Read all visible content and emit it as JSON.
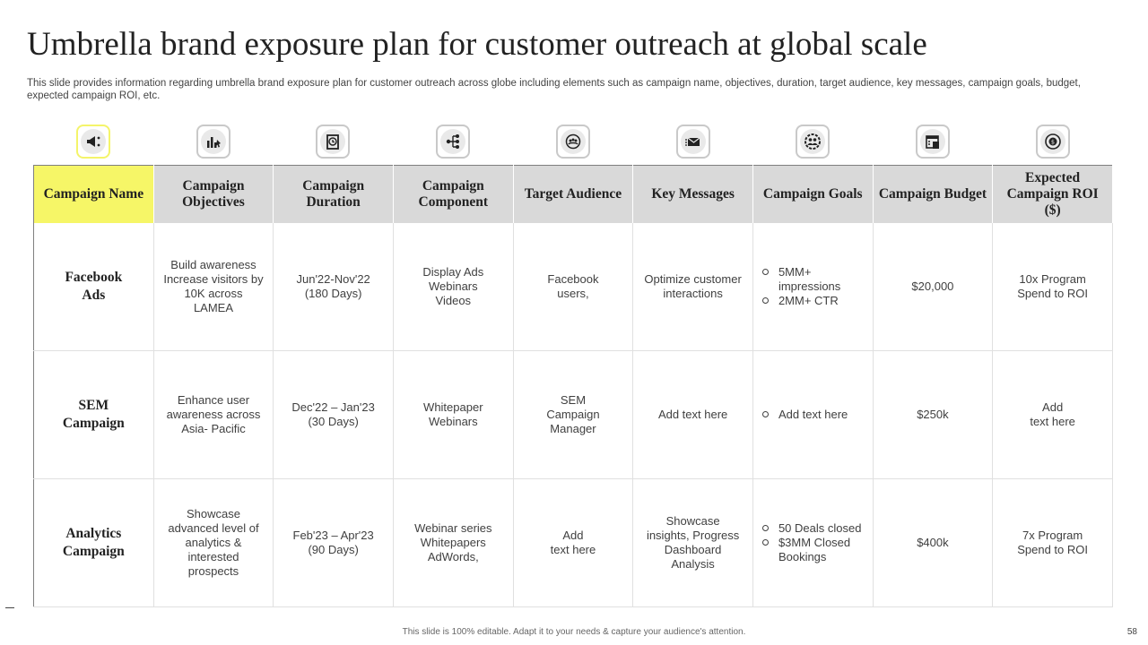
{
  "title": "Umbrella brand exposure plan for customer outreach at global scale",
  "subtitle": "This slide provides information regarding umbrella brand exposure plan for customer outreach across globe including elements such as campaign name, objectives, duration, target audience, key messages, campaign goals, budget, expected campaign ROI, etc.",
  "icons": [
    "megaphone-icon",
    "chart-pointer-icon",
    "clock-board-icon",
    "network-icon",
    "target-audience-icon",
    "email-icon",
    "people-gear-icon",
    "calendar-budget-icon",
    "coin-return-icon"
  ],
  "colors": {
    "highlight": "#f6f667",
    "header_gray": "#d9d9d9"
  },
  "headers": [
    "Campaign Name",
    "Campaign Objectives",
    "Campaign Duration",
    "Campaign Component",
    "Target Audience",
    "Key Messages",
    "Campaign Goals",
    "Campaign Budget",
    "Expected Campaign ROI ($)"
  ],
  "rows": [
    {
      "name": [
        "Facebook",
        "Ads"
      ],
      "objectives": [
        "Build awareness",
        "Increase visitors by",
        "10K across",
        "LAMEA"
      ],
      "duration": [
        "Jun'22-Nov'22",
        "(180 Days)"
      ],
      "component": [
        "Display Ads",
        "Webinars",
        "Videos"
      ],
      "audience": [
        "Facebook",
        "users,"
      ],
      "messages": [
        "Optimize customer",
        "interactions"
      ],
      "goals": [
        "5MM+ impressions",
        "2MM+  CTR"
      ],
      "budget": "$20,000",
      "roi": [
        "10x Program",
        "Spend to ROI"
      ]
    },
    {
      "name": [
        "SEM",
        "Campaign"
      ],
      "objectives": [
        "Enhance user",
        "awareness across",
        "Asia- Pacific"
      ],
      "duration": [
        "Dec'22 – Jan'23",
        "(30 Days)"
      ],
      "component": [
        "Whitepaper",
        "Webinars"
      ],
      "audience": [
        "SEM",
        "Campaign",
        "Manager"
      ],
      "messages": [
        "Add text here"
      ],
      "goals": [
        "Add text here"
      ],
      "budget": "$250k",
      "roi": [
        "Add",
        "text here"
      ]
    },
    {
      "name": [
        "Analytics",
        "Campaign"
      ],
      "objectives": [
        "Showcase",
        "advanced level of",
        "analytics &",
        "interested",
        "prospects"
      ],
      "duration": [
        "Feb'23 – Apr'23",
        "(90 Days)"
      ],
      "component": [
        "Webinar series",
        "Whitepapers",
        "AdWords,"
      ],
      "audience": [
        "Add",
        "text here"
      ],
      "messages": [
        "Showcase",
        "insights, Progress",
        "Dashboard",
        "Analysis"
      ],
      "goals": [
        "50 Deals closed",
        "$3MM Closed Bookings"
      ],
      "budget": "$400k",
      "roi": [
        "7x Program",
        "Spend to ROI"
      ]
    }
  ],
  "footer": "This slide is 100% editable.  Adapt it to your needs & capture your audience's attention.",
  "page_number": "58"
}
